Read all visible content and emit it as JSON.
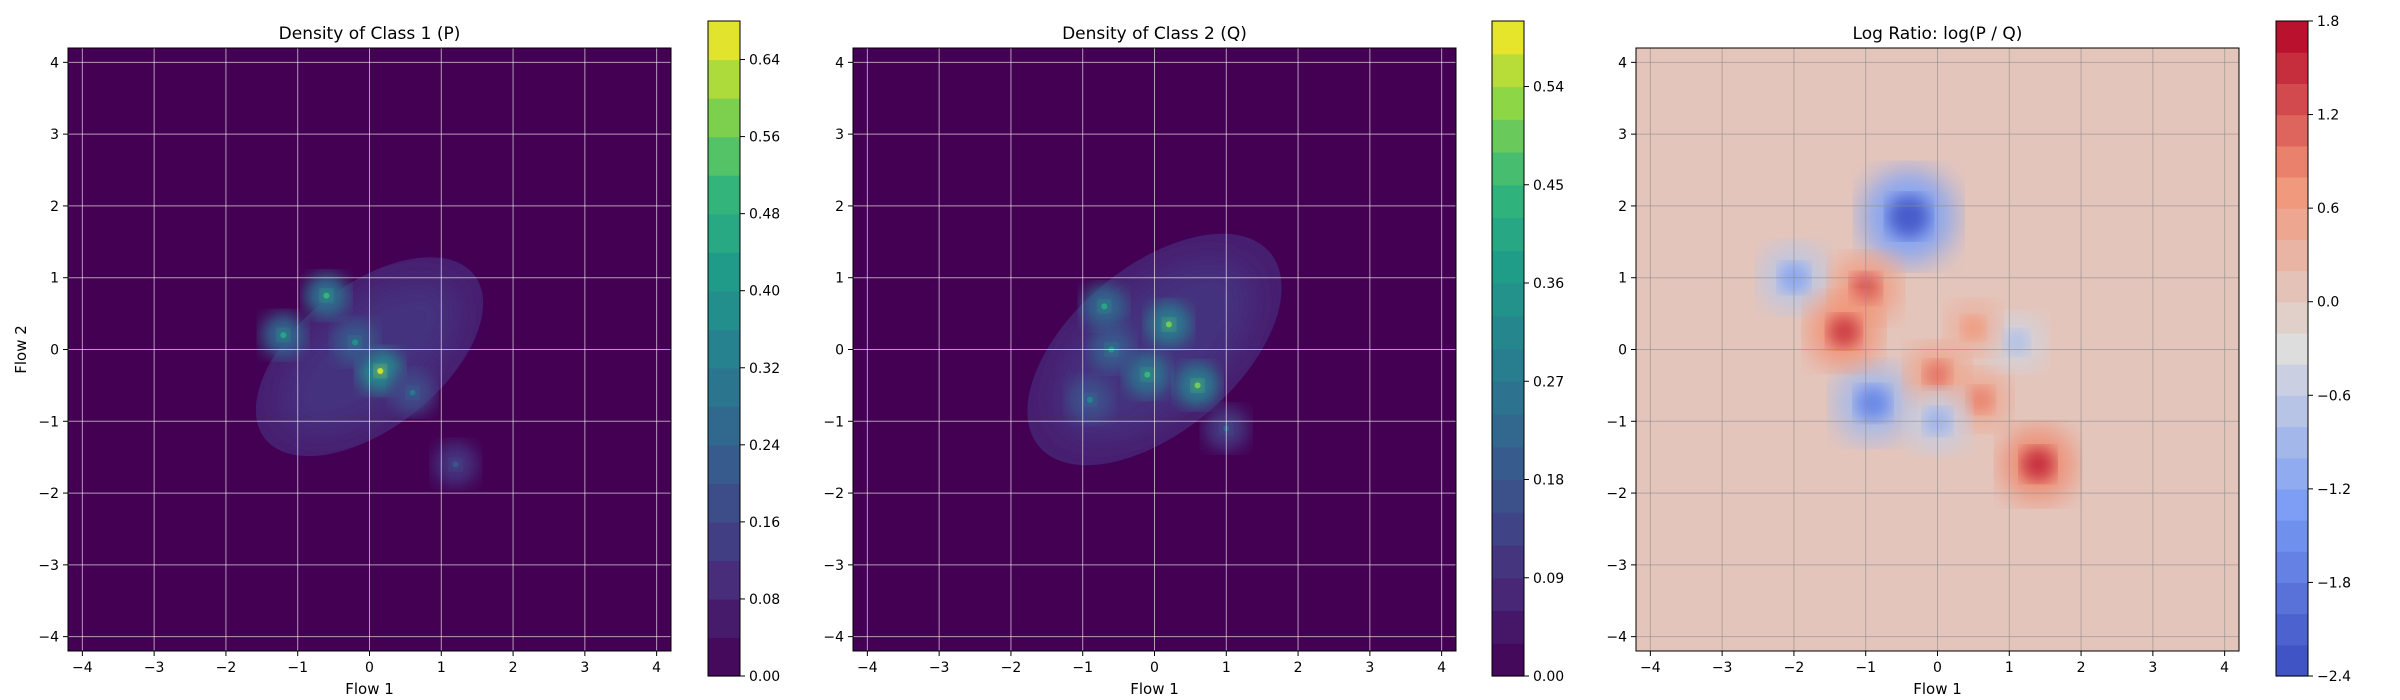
{
  "chart_data": [
    {
      "type": "heatmap",
      "title": "Density of Class 1 (P)",
      "xlabel": "Flow 1",
      "ylabel": "Flow 2",
      "xlim": [
        -4.2,
        4.2
      ],
      "ylim": [
        -4.2,
        4.2
      ],
      "xticks": [
        "−4",
        "−3",
        "−2",
        "−1",
        "0",
        "1",
        "2",
        "3",
        "4"
      ],
      "yticks": [
        "−4",
        "−3",
        "−2",
        "−1",
        "0",
        "1",
        "2",
        "3",
        "4"
      ],
      "grid": true,
      "colormap": "viridis",
      "colorbar": {
        "range": [
          0,
          0.68
        ],
        "ticks": [
          "0.00",
          "0.08",
          "0.16",
          "0.24",
          "0.32",
          "0.40",
          "0.48",
          "0.56",
          "0.64"
        ],
        "levels": 17
      },
      "density_region": {
        "center": [
          0.0,
          -0.1
        ],
        "rotation_deg": -38,
        "half_extent": [
          1.85,
          1.0
        ]
      },
      "peaks": [
        {
          "x": 0.15,
          "y": -0.3,
          "value": 0.64
        },
        {
          "x": -0.6,
          "y": 0.75,
          "value": 0.5
        },
        {
          "x": -1.2,
          "y": 0.2,
          "value": 0.45
        },
        {
          "x": -0.2,
          "y": 0.1,
          "value": 0.38
        },
        {
          "x": 0.6,
          "y": -0.6,
          "value": 0.3
        },
        {
          "x": 1.2,
          "y": -1.6,
          "value": 0.2
        }
      ]
    },
    {
      "type": "heatmap",
      "title": "Density of Class 2 (Q)",
      "xlabel": "Flow 1",
      "ylabel": "",
      "xlim": [
        -4.2,
        4.2
      ],
      "ylim": [
        -4.2,
        4.2
      ],
      "xticks": [
        "−4",
        "−3",
        "−2",
        "−1",
        "0",
        "1",
        "2",
        "3",
        "4"
      ],
      "yticks": [
        "−4",
        "−3",
        "−2",
        "−1",
        "0",
        "1",
        "2",
        "3",
        "4"
      ],
      "grid": true,
      "colormap": "viridis",
      "colorbar": {
        "range": [
          0,
          0.6
        ],
        "ticks": [
          "0.00",
          "0.09",
          "0.18",
          "0.27",
          "0.36",
          "0.45",
          "0.54"
        ],
        "levels": 20
      },
      "density_region": {
        "center": [
          0.0,
          0.0
        ],
        "rotation_deg": -40,
        "half_extent": [
          2.1,
          1.15
        ]
      },
      "peaks": [
        {
          "x": 0.2,
          "y": 0.35,
          "value": 0.5
        },
        {
          "x": 0.6,
          "y": -0.5,
          "value": 0.5
        },
        {
          "x": -0.1,
          "y": -0.35,
          "value": 0.45
        },
        {
          "x": -0.7,
          "y": 0.6,
          "value": 0.4
        },
        {
          "x": -0.6,
          "y": 0.0,
          "value": 0.35
        },
        {
          "x": -0.9,
          "y": -0.7,
          "value": 0.3
        },
        {
          "x": 1.0,
          "y": -1.1,
          "value": 0.2
        }
      ]
    },
    {
      "type": "heatmap",
      "title": "Log Ratio: log(P / Q)",
      "xlabel": "Flow 1",
      "ylabel": "",
      "xlim": [
        -4.2,
        4.2
      ],
      "ylim": [
        -4.2,
        4.2
      ],
      "xticks": [
        "−4",
        "−3",
        "−2",
        "−1",
        "0",
        "1",
        "2",
        "3",
        "4"
      ],
      "yticks": [
        "−4",
        "−3",
        "−2",
        "−1",
        "0",
        "1",
        "2",
        "3",
        "4"
      ],
      "grid": true,
      "colormap": "coolwarm",
      "colorbar": {
        "range": [
          -2.4,
          1.8
        ],
        "ticks": [
          "−2.4",
          "−1.8",
          "−1.2",
          "−0.6",
          "0.0",
          "0.6",
          "1.2",
          "1.8"
        ],
        "levels": 21
      },
      "features": [
        {
          "x": -0.4,
          "y": 1.85,
          "value": -2.2
        },
        {
          "x": -2.0,
          "y": 1.0,
          "value": -1.2
        },
        {
          "x": -0.9,
          "y": -0.75,
          "value": -1.6
        },
        {
          "x": 1.4,
          "y": -1.6,
          "value": 1.5
        },
        {
          "x": -1.0,
          "y": 0.85,
          "value": 1.2
        },
        {
          "x": -1.3,
          "y": 0.25,
          "value": 1.4
        },
        {
          "x": 0.0,
          "y": -0.35,
          "value": 1.0
        },
        {
          "x": 0.6,
          "y": -0.7,
          "value": 0.9
        },
        {
          "x": 0.0,
          "y": -1.0,
          "value": -1.0
        },
        {
          "x": 1.1,
          "y": 0.1,
          "value": -0.8
        },
        {
          "x": 0.5,
          "y": 0.3,
          "value": 0.7
        }
      ]
    }
  ]
}
